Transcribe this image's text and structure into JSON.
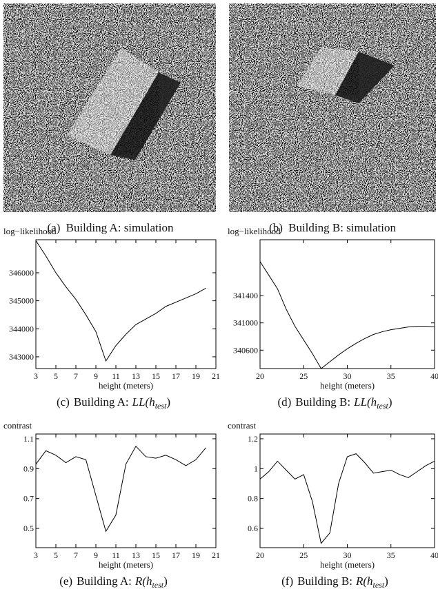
{
  "images": [
    {
      "caption_label": "(a)",
      "caption": "Building A: simulation"
    },
    {
      "caption_label": "(b)",
      "caption": "Building B: simulation"
    }
  ],
  "chart_data": [
    {
      "type": "line",
      "caption_label": "(c)",
      "caption": "Building A:",
      "caption_math": "LL(h",
      "caption_sub": "test",
      "caption_close": ")",
      "y_label": "log−likelihood",
      "x_label": "height (meters)",
      "x": [
        3,
        4,
        5,
        6,
        7,
        8,
        9,
        10,
        11,
        12,
        13,
        14,
        15,
        16,
        17,
        18,
        19,
        20
      ],
      "values": [
        347150,
        346600,
        346000,
        345500,
        345050,
        344500,
        343900,
        342850,
        343400,
        343800,
        344150,
        344350,
        344550,
        344800,
        344950,
        345100,
        345250,
        345450
      ],
      "color": "#000000",
      "xlim": [
        3,
        21
      ],
      "xticks": [
        3,
        5,
        7,
        9,
        11,
        13,
        15,
        17,
        19,
        21
      ],
      "ylim": [
        342580,
        347180
      ],
      "yticks": [
        343000,
        344000,
        345000,
        346000
      ]
    },
    {
      "type": "line",
      "caption_label": "(d)",
      "caption": "Building B:",
      "caption_math": "LL(h",
      "caption_sub": "test",
      "caption_close": ")",
      "y_label": "log−likelihood",
      "x_label": "height (meters)",
      "x": [
        20,
        21,
        22,
        23,
        24,
        25,
        26,
        27,
        28,
        29,
        30,
        31,
        32,
        33,
        34,
        35,
        36,
        37,
        38,
        39,
        40
      ],
      "values": [
        341900,
        341700,
        341500,
        341200,
        340950,
        340750,
        340550,
        340330,
        340430,
        340530,
        340620,
        340700,
        340770,
        340830,
        340870,
        340900,
        340920,
        340940,
        340950,
        340950,
        340940
      ],
      "color": "#000000",
      "xlim": [
        20,
        40
      ],
      "xticks": [
        20,
        25,
        30,
        35,
        40
      ],
      "ylim": [
        340330,
        342220
      ],
      "yticks": [
        340600,
        341000,
        341400
      ]
    },
    {
      "type": "line",
      "caption_label": "(e)",
      "caption": "Building A:",
      "caption_math": "R(h",
      "caption_sub": "test",
      "caption_close": ")",
      "y_label": "contrast",
      "x_label": "height (meters)",
      "x": [
        3,
        4,
        5,
        6,
        7,
        8,
        9,
        10,
        11,
        12,
        13,
        14,
        15,
        16,
        17,
        18,
        19,
        20
      ],
      "values": [
        0.93,
        1.02,
        0.99,
        0.94,
        0.98,
        0.96,
        0.72,
        0.48,
        0.59,
        0.93,
        1.05,
        0.98,
        0.97,
        0.99,
        0.96,
        0.92,
        0.96,
        1.04
      ],
      "color": "#000000",
      "xlim": [
        3,
        21
      ],
      "xticks": [
        3,
        5,
        7,
        9,
        11,
        13,
        15,
        17,
        19,
        21
      ],
      "ylim": [
        0.371,
        1.132
      ],
      "yticks": [
        0.5,
        0.7,
        0.9,
        1.1
      ]
    },
    {
      "type": "line",
      "caption_label": "(f)",
      "caption": "Building B:",
      "caption_math": "R(h",
      "caption_sub": "test",
      "caption_close": ")",
      "y_label": "contrast",
      "x_label": "height (meters)",
      "x": [
        20,
        21,
        22,
        23,
        24,
        25,
        26,
        27,
        28,
        29,
        30,
        31,
        32,
        33,
        34,
        35,
        36,
        37,
        38,
        39,
        40
      ],
      "values": [
        0.93,
        0.98,
        1.05,
        0.99,
        0.93,
        0.96,
        0.78,
        0.5,
        0.57,
        0.9,
        1.08,
        1.1,
        1.04,
        0.97,
        0.98,
        0.99,
        0.96,
        0.94,
        0.98,
        1.02,
        1.05
      ],
      "color": "#000000",
      "xlim": [
        20,
        40
      ],
      "xticks": [
        20,
        25,
        30,
        35,
        40
      ],
      "ylim": [
        0.471,
        1.232
      ],
      "yticks": [
        0.6,
        0.8,
        1,
        1.2
      ]
    }
  ]
}
